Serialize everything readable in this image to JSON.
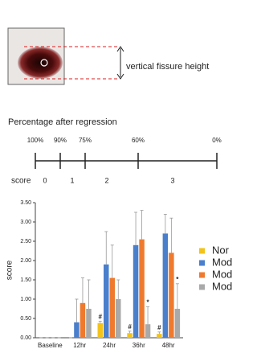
{
  "annotation": "vertical fissure height",
  "scale": {
    "title": "Percentage after regression",
    "percent_labels": [
      "100%",
      "90%",
      "75%",
      "60%",
      "0%"
    ],
    "score_label": "score",
    "scores": [
      "0",
      "1",
      "2",
      "3"
    ]
  },
  "chart_data": {
    "type": "bar",
    "y_label": "score",
    "categories": [
      "Baseline",
      "12hr",
      "24hr",
      "36hr",
      "48hr"
    ],
    "series": [
      {
        "name": "Nor",
        "color": "#f2c31a",
        "values": [
          0,
          0,
          0.38,
          0.12,
          0.1
        ],
        "errors": [
          0,
          0,
          0.05,
          0.05,
          0.05
        ],
        "markers": [
          null,
          null,
          "#",
          "#",
          "#"
        ]
      },
      {
        "name": "Mod",
        "color": "#4a7fcc",
        "values": [
          0,
          0.4,
          1.9,
          2.4,
          2.7
        ],
        "errors": [
          0,
          0.6,
          0.85,
          0.85,
          0.5
        ],
        "markers": [
          null,
          null,
          null,
          null,
          null
        ]
      },
      {
        "name": "Mod",
        "color": "#ef7a2e",
        "values": [
          0,
          0.9,
          1.55,
          2.55,
          2.2
        ],
        "errors": [
          0,
          0.65,
          0.85,
          0.75,
          0.9
        ],
        "markers": [
          null,
          null,
          null,
          null,
          null
        ]
      },
      {
        "name": "Mod",
        "color": "#a9a9a9",
        "values": [
          0,
          0.75,
          1.0,
          0.35,
          0.75
        ],
        "errors": [
          0,
          0.75,
          0.5,
          0.45,
          0.65
        ],
        "markers": [
          null,
          null,
          null,
          "*",
          "*"
        ]
      }
    ],
    "ylim": [
      0,
      3.5
    ],
    "yticks": [
      {
        "value": 0,
        "label": "0.00"
      },
      {
        "value": 0.5,
        "label": "0.50"
      },
      {
        "value": 1,
        "label": "1.00"
      },
      {
        "value": 1.5,
        "label": "1.50"
      },
      {
        "value": 2,
        "label": "2.00"
      },
      {
        "value": 2.5,
        "label": "2.50"
      },
      {
        "value": 3,
        "label": "3.00"
      },
      {
        "value": 3.5,
        "label": "3.50"
      }
    ]
  }
}
